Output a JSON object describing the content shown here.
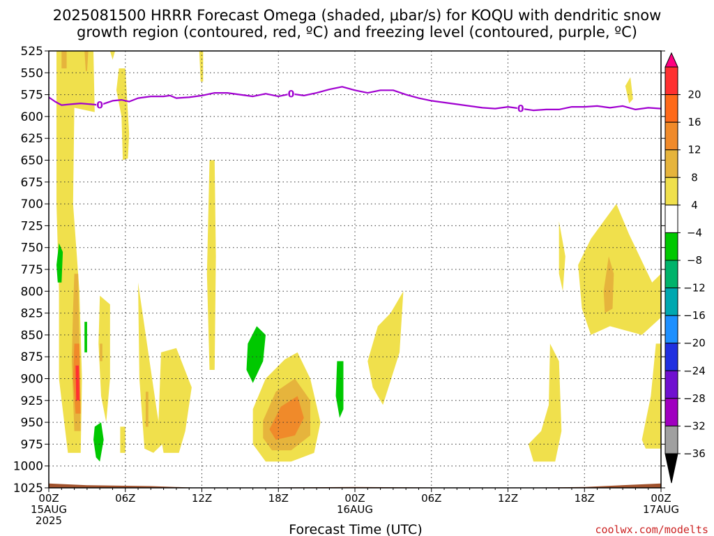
{
  "title_lines": [
    "2025081500 HRRR Forecast Omega (shaded, μbar/s) for KOQU with dendritic snow",
    "growth region (contoured, red, ºC) and freezing level (contoured, purple, ºC)"
  ],
  "credit": "coolwx.com/modelts",
  "colors": {
    "freezing_level": "#a000d0",
    "ground": "#a0522d",
    "frame": "#000000"
  },
  "chart_data": {
    "type": "heatmap",
    "xlabel": "Forecast Time (UTC)",
    "ylabel": "",
    "x_range_hours": [
      0,
      48
    ],
    "x_ticks": [
      {
        "hour": 0,
        "label": "00Z",
        "sub": "15AUG",
        "sub2": "2025"
      },
      {
        "hour": 6,
        "label": "06Z",
        "sub": "",
        "sub2": ""
      },
      {
        "hour": 12,
        "label": "12Z",
        "sub": "",
        "sub2": ""
      },
      {
        "hour": 18,
        "label": "18Z",
        "sub": "",
        "sub2": ""
      },
      {
        "hour": 24,
        "label": "00Z",
        "sub": "16AUG",
        "sub2": ""
      },
      {
        "hour": 30,
        "label": "06Z",
        "sub": "",
        "sub2": ""
      },
      {
        "hour": 36,
        "label": "12Z",
        "sub": "",
        "sub2": ""
      },
      {
        "hour": 42,
        "label": "18Z",
        "sub": "",
        "sub2": ""
      },
      {
        "hour": 48,
        "label": "00Z",
        "sub": "17AUG",
        "sub2": ""
      }
    ],
    "y_range_mb": [
      525,
      1025
    ],
    "y_ticks": [
      525,
      550,
      575,
      600,
      625,
      650,
      675,
      700,
      725,
      750,
      775,
      800,
      825,
      850,
      875,
      900,
      925,
      950,
      975,
      1000,
      1025
    ],
    "grid": true,
    "colorbar": {
      "units": "μbar/s",
      "labels": [
        "20",
        "16",
        "12",
        "8",
        "4",
        "−4",
        "−8",
        "−12",
        "−16",
        "−20",
        "−24",
        "−28",
        "−32",
        "−36"
      ],
      "colors": [
        "#ff0080",
        "#ff3030",
        "#ff6a1a",
        "#f08a2a",
        "#e6b43c",
        "#f0e04c",
        "#ffffff",
        "#00c800",
        "#00b36b",
        "#00a8b0",
        "#1e90ff",
        "#2030e0",
        "#7010d0",
        "#a000c0",
        "#a0a0a0",
        "#000000"
      ]
    },
    "freezing_level": {
      "label": "0",
      "label_hours": [
        4,
        19,
        37
      ],
      "points": [
        [
          0,
          578
        ],
        [
          0.5,
          583
        ],
        [
          1,
          587
        ],
        [
          1.7,
          586
        ],
        [
          2.5,
          585
        ],
        [
          3.3,
          586
        ],
        [
          4,
          587
        ],
        [
          5,
          582
        ],
        [
          5.7,
          581
        ],
        [
          6.3,
          583
        ],
        [
          7,
          579
        ],
        [
          8,
          577
        ],
        [
          9,
          577
        ],
        [
          9.5,
          576
        ],
        [
          10,
          579
        ],
        [
          11,
          578
        ],
        [
          12,
          576
        ],
        [
          13,
          573
        ],
        [
          14,
          573
        ],
        [
          15,
          575
        ],
        [
          16,
          577
        ],
        [
          17,
          574
        ],
        [
          18,
          577
        ],
        [
          19,
          574
        ],
        [
          20,
          576
        ],
        [
          21,
          573
        ],
        [
          22,
          569
        ],
        [
          23,
          566
        ],
        [
          24,
          570
        ],
        [
          25,
          573
        ],
        [
          26,
          570
        ],
        [
          27,
          570
        ],
        [
          28,
          575
        ],
        [
          29,
          579
        ],
        [
          30,
          582
        ],
        [
          31,
          584
        ],
        [
          32,
          586
        ],
        [
          33,
          588
        ],
        [
          34,
          590
        ],
        [
          35,
          591
        ],
        [
          36,
          589
        ],
        [
          37,
          591
        ],
        [
          38,
          593
        ],
        [
          39,
          592
        ],
        [
          40,
          592
        ],
        [
          41,
          589
        ],
        [
          42,
          589
        ],
        [
          43,
          588
        ],
        [
          44,
          590
        ],
        [
          45,
          588
        ],
        [
          46,
          592
        ],
        [
          47,
          590
        ],
        [
          48,
          591
        ]
      ]
    },
    "omega_regions": [
      {
        "level": 4,
        "color": "#f0e04c",
        "points": [
          [
            0.6,
            525
          ],
          [
            3.5,
            525
          ],
          [
            3.6,
            595
          ],
          [
            2,
            590
          ],
          [
            1.9,
            700
          ],
          [
            2.4,
            800
          ],
          [
            2.6,
            900
          ],
          [
            2.5,
            985
          ],
          [
            1.5,
            985
          ],
          [
            0.8,
            900
          ],
          [
            0.8,
            800
          ],
          [
            0.6,
            700
          ]
        ]
      },
      {
        "level": 8,
        "color": "#e6b43c",
        "points": [
          [
            1.0,
            525
          ],
          [
            1.4,
            525
          ],
          [
            1.4,
            545
          ],
          [
            1.0,
            545
          ]
        ]
      },
      {
        "level": 8,
        "color": "#e6b43c",
        "points": [
          [
            2.8,
            525
          ],
          [
            3.1,
            525
          ],
          [
            3.0,
            548
          ],
          [
            2.9,
            548
          ]
        ]
      },
      {
        "level": 8,
        "color": "#e6b43c",
        "points": [
          [
            2.0,
            780
          ],
          [
            2.3,
            780
          ],
          [
            2.4,
            860
          ],
          [
            2.5,
            960
          ],
          [
            2.0,
            960
          ],
          [
            1.8,
            880
          ],
          [
            1.9,
            820
          ]
        ]
      },
      {
        "level": 12,
        "color": "#f08a2a",
        "points": [
          [
            2.0,
            860
          ],
          [
            2.4,
            860
          ],
          [
            2.5,
            940
          ],
          [
            2.1,
            940
          ],
          [
            1.9,
            900
          ]
        ]
      },
      {
        "level": 16,
        "color": "#ff3030",
        "points": [
          [
            2.1,
            885
          ],
          [
            2.35,
            885
          ],
          [
            2.4,
            925
          ],
          [
            2.15,
            925
          ]
        ]
      },
      {
        "level": 4,
        "color": "#f0e04c",
        "points": [
          [
            5.5,
            545
          ],
          [
            6.0,
            545
          ],
          [
            6.3,
            620
          ],
          [
            6.2,
            648
          ],
          [
            5.8,
            650
          ],
          [
            5.7,
            600
          ],
          [
            5.3,
            570
          ]
        ]
      },
      {
        "level": 4,
        "color": "#f0e04c",
        "points": [
          [
            4.8,
            525
          ],
          [
            5.2,
            525
          ],
          [
            5.0,
            535
          ]
        ]
      },
      {
        "level": 4,
        "color": "#f0e04c",
        "points": [
          [
            11.8,
            525
          ],
          [
            12.1,
            525
          ],
          [
            12.1,
            560
          ],
          [
            11.9,
            560
          ]
        ]
      },
      {
        "level": 4,
        "color": "#f0e04c",
        "points": [
          [
            12.6,
            650
          ],
          [
            13.0,
            650
          ],
          [
            13.1,
            760
          ],
          [
            13.0,
            890
          ],
          [
            12.6,
            890
          ],
          [
            12.4,
            780
          ]
        ]
      },
      {
        "level": 4,
        "color": "#f0e04c",
        "points": [
          [
            4.0,
            805
          ],
          [
            4.8,
            815
          ],
          [
            4.8,
            900
          ],
          [
            4.5,
            950
          ],
          [
            4.1,
            920
          ],
          [
            3.9,
            860
          ]
        ]
      },
      {
        "level": 8,
        "color": "#e6b43c",
        "points": [
          [
            4.0,
            860
          ],
          [
            4.2,
            860
          ],
          [
            4.2,
            880
          ],
          [
            4.0,
            880
          ]
        ]
      },
      {
        "level": 4,
        "color": "#f0e04c",
        "points": [
          [
            5.6,
            955
          ],
          [
            6.0,
            955
          ],
          [
            6.0,
            985
          ],
          [
            5.6,
            985
          ]
        ]
      },
      {
        "level": 4,
        "color": "#f0e04c",
        "points": [
          [
            7.0,
            790
          ],
          [
            7.6,
            850
          ],
          [
            8.5,
            940
          ],
          [
            8.9,
            975
          ],
          [
            8.2,
            985
          ],
          [
            7.5,
            980
          ],
          [
            7.1,
            900
          ]
        ]
      },
      {
        "level": 8,
        "color": "#e6b43c",
        "points": [
          [
            7.6,
            915
          ],
          [
            7.8,
            915
          ],
          [
            7.8,
            955
          ],
          [
            7.6,
            955
          ]
        ]
      },
      {
        "level": 4,
        "color": "#f0e04c",
        "points": [
          [
            8.8,
            870
          ],
          [
            10.0,
            865
          ],
          [
            11.2,
            910
          ],
          [
            10.7,
            960
          ],
          [
            10.2,
            985
          ],
          [
            9.0,
            985
          ],
          [
            8.6,
            950
          ]
        ]
      },
      {
        "level": 4,
        "color": "#f0e04c",
        "points": [
          [
            16.0,
            935
          ],
          [
            17.0,
            900
          ],
          [
            18.5,
            878
          ],
          [
            19.5,
            870
          ],
          [
            20.5,
            900
          ],
          [
            21.3,
            950
          ],
          [
            20.8,
            985
          ],
          [
            19.0,
            995
          ],
          [
            17.0,
            995
          ],
          [
            16.0,
            975
          ]
        ]
      },
      {
        "level": 8,
        "color": "#e6b43c",
        "points": [
          [
            16.8,
            948
          ],
          [
            17.8,
            915
          ],
          [
            19.3,
            900
          ],
          [
            20.5,
            925
          ],
          [
            20.5,
            965
          ],
          [
            19.0,
            982
          ],
          [
            17.5,
            982
          ],
          [
            16.8,
            968
          ]
        ]
      },
      {
        "level": 12,
        "color": "#f08a2a",
        "points": [
          [
            17.3,
            958
          ],
          [
            18.2,
            932
          ],
          [
            19.5,
            920
          ],
          [
            20.0,
            945
          ],
          [
            19.3,
            965
          ],
          [
            17.8,
            970
          ]
        ]
      },
      {
        "level": 4,
        "color": "#f0e04c",
        "points": [
          [
            25.0,
            880
          ],
          [
            25.8,
            840
          ],
          [
            26.8,
            825
          ],
          [
            27.8,
            800
          ],
          [
            27.5,
            870
          ],
          [
            26.2,
            930
          ],
          [
            25.4,
            910
          ]
        ]
      },
      {
        "level": 4,
        "color": "#f0e04c",
        "points": [
          [
            40.0,
            720
          ],
          [
            40.5,
            760
          ],
          [
            40.3,
            800
          ],
          [
            40.0,
            780
          ]
        ]
      },
      {
        "level": 4,
        "color": "#f0e04c",
        "points": [
          [
            41.5,
            770
          ],
          [
            42.5,
            740
          ],
          [
            43.5,
            720
          ],
          [
            44.5,
            700
          ],
          [
            45.5,
            735
          ],
          [
            47.3,
            790
          ],
          [
            48.0,
            780
          ],
          [
            48.0,
            830
          ],
          [
            46.5,
            850
          ],
          [
            44.0,
            840
          ],
          [
            42.5,
            850
          ],
          [
            41.8,
            820
          ]
        ]
      },
      {
        "level": 8,
        "color": "#e6b43c",
        "points": [
          [
            43.5,
            800
          ],
          [
            43.9,
            760
          ],
          [
            44.3,
            780
          ],
          [
            44.2,
            820
          ],
          [
            43.6,
            825
          ]
        ]
      },
      {
        "level": 4,
        "color": "#f0e04c",
        "points": [
          [
            45.2,
            565
          ],
          [
            45.6,
            555
          ],
          [
            45.8,
            580
          ],
          [
            45.5,
            585
          ]
        ]
      },
      {
        "level": 4,
        "color": "#f0e04c",
        "points": [
          [
            47.6,
            860
          ],
          [
            48.0,
            860
          ],
          [
            48.0,
            980
          ],
          [
            46.8,
            980
          ],
          [
            46.5,
            970
          ],
          [
            47.2,
            920
          ]
        ]
      },
      {
        "level": 4,
        "color": "#f0e04c",
        "points": [
          [
            39.3,
            860
          ],
          [
            40.0,
            880
          ],
          [
            40.2,
            960
          ],
          [
            39.7,
            995
          ],
          [
            38.0,
            995
          ],
          [
            37.6,
            975
          ],
          [
            38.6,
            960
          ],
          [
            39.2,
            930
          ]
        ]
      }
    ],
    "negative_regions": [
      {
        "level": -4,
        "color": "#00c800",
        "points": [
          [
            0.8,
            745
          ],
          [
            1.1,
            755
          ],
          [
            1.0,
            790
          ],
          [
            0.7,
            790
          ],
          [
            0.6,
            770
          ]
        ]
      },
      {
        "level": -4,
        "color": "#00c800",
        "points": [
          [
            2.8,
            835
          ],
          [
            3.0,
            835
          ],
          [
            3.0,
            870
          ],
          [
            2.8,
            870
          ]
        ]
      },
      {
        "level": -4,
        "color": "#00c800",
        "points": [
          [
            3.6,
            955
          ],
          [
            4.1,
            950
          ],
          [
            4.3,
            970
          ],
          [
            4.0,
            995
          ],
          [
            3.7,
            990
          ],
          [
            3.5,
            970
          ]
        ]
      },
      {
        "level": -4,
        "color": "#00c800",
        "points": [
          [
            15.6,
            860
          ],
          [
            16.3,
            840
          ],
          [
            17.0,
            850
          ],
          [
            16.8,
            880
          ],
          [
            16.0,
            905
          ],
          [
            15.5,
            890
          ]
        ]
      },
      {
        "level": -4,
        "color": "#00c800",
        "points": [
          [
            22.6,
            880
          ],
          [
            23.1,
            880
          ],
          [
            23.1,
            935
          ],
          [
            22.8,
            945
          ],
          [
            22.5,
            920
          ]
        ]
      }
    ],
    "ground": {
      "points": [
        [
          0,
          1020
        ],
        [
          3,
          1022
        ],
        [
          8,
          1023
        ],
        [
          12,
          1025
        ],
        [
          24,
          1024
        ],
        [
          36,
          1025
        ],
        [
          42,
          1024
        ],
        [
          48,
          1020
        ]
      ]
    }
  }
}
